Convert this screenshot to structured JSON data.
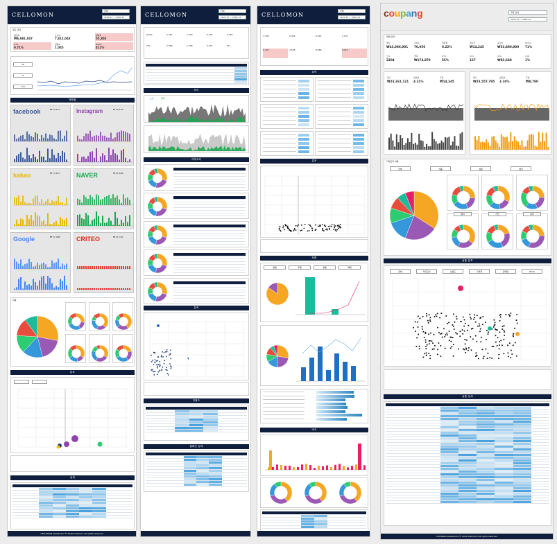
{
  "panels": {
    "p1": {
      "logo": "CELLOMON",
      "filter1": "전체",
      "filter2": "2020.11 ~ 2020.12",
      "kpi_title": "광고 요약",
      "kpis": [
        {
          "label": "광고비",
          "value": "₩6,081,047",
          "pink": false
        },
        {
          "label": "노출수",
          "value": "7,812,043",
          "pink": false
        },
        {
          "label": "클릭수",
          "value": "55,302",
          "pink": true
        },
        {
          "label": "CTR",
          "value": "0.71%",
          "pink": true
        },
        {
          "label": "전환수",
          "value": "1,045",
          "pink": false
        },
        {
          "label": "ROAS",
          "value": "412%",
          "pink": true
        }
      ],
      "side_boxes": [
        "38",
        "12",
        "104"
      ],
      "sec_media": "매체별",
      "brands": [
        "facebook",
        "Instagram",
        "kakao",
        "NAVER",
        "Google",
        "CRITEO"
      ],
      "brand_colors": [
        "#3b5998",
        "#8e44ad",
        "#e6b800",
        "#18a94e",
        "#4285f4",
        "#e2231a"
      ],
      "sec_share": "비중",
      "sec_scatter": "분포",
      "sec_table": "상세",
      "footer": "CELLOMON Dashboard  © 2020 Cellomon  All rights reserved"
    },
    "p2": {
      "logo": "CELLOMON",
      "filter1": "전체",
      "filter2": "2020.11 ~ 2020.12",
      "sec_trend": "추이",
      "sec_donut": "카테고리",
      "sec_scatter": "분포",
      "sec_tbl1": "키워드",
      "sec_tbl2": "캠페인 상세",
      "legend_a": "노출",
      "legend_b": "클릭"
    },
    "p3": {
      "logo": "CELLOMON",
      "filter1": "전체",
      "filter2": "2020.11 ~ 2020.12",
      "sec_lists": "요약",
      "sec_scatter": "분포",
      "sec_bars": "전환",
      "sec_combo": "성과",
      "sec_mix": "비교",
      "tabs": [
        "일별",
        "주별",
        "월별",
        "매체"
      ]
    },
    "p4": {
      "logo": "coupang",
      "filter1": "쿠팡 전체",
      "filter2": "2020.11 ~ 2020.12",
      "kpi_title": "판매 요약",
      "kpis": [
        {
          "label": "매출",
          "value": "₩43,086,001"
        },
        {
          "label": "주문수",
          "value": "76,956"
        },
        {
          "label": "전환율",
          "value": "0.22%"
        },
        {
          "label": "객단가",
          "value": "₩14,245"
        },
        {
          "label": "광고비",
          "value": "₩53,880,000"
        },
        {
          "label": "ROAS",
          "value": "71%"
        },
        {
          "label": "노출",
          "value": "2204"
        },
        {
          "label": "클릭",
          "value": "₩174,870"
        },
        {
          "label": "CTR",
          "value": "56%"
        },
        {
          "label": "CPC",
          "value": "167"
        },
        {
          "label": "CPA",
          "value": "₩83,648"
        },
        {
          "label": "CVR",
          "value": "1%"
        }
      ],
      "left_kpis": [
        {
          "label": "매출",
          "value": "₩23,261,121"
        },
        {
          "label": "성장률",
          "value": "4.31%"
        },
        {
          "label": "주문",
          "value": "₩14,245"
        }
      ],
      "right_kpis": [
        {
          "label": "매출",
          "value": "₩23,557,795"
        },
        {
          "label": "성장률",
          "value": "3.10%"
        },
        {
          "label": "주문",
          "value": "₩8,780"
        }
      ],
      "sec_category": "카테고리 비중",
      "cat_tabs": [
        "전체",
        "식품",
        "생활",
        "패션"
      ],
      "sub_tabs": [
        "뷰티",
        "가전",
        "유아"
      ],
      "sec_scatter": "상품 분포",
      "filter_tabs": [
        "전체",
        "카테고리",
        "브랜드",
        "가격대",
        "판매량",
        "ROAS"
      ],
      "sec_table": "상품 상세",
      "footer": "COUPANG Dashboard  © 2020 Cellomon  All rights reserved",
      "accent_left": "#333333",
      "accent_right": "#f39c12"
    }
  }
}
